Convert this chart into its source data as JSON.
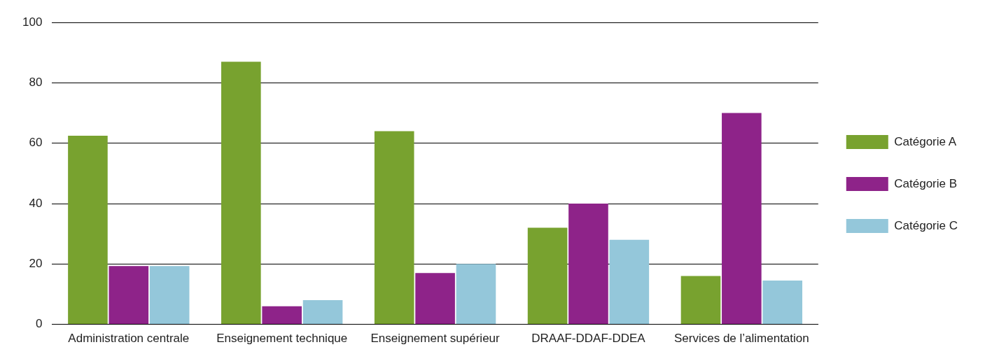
{
  "chart_data": {
    "type": "bar",
    "categories": [
      "Administration centrale",
      "Enseignement technique",
      "Enseignement supérieur",
      "DRAAF-DDAF-DDEA",
      "Services de l’alimentation"
    ],
    "series": [
      {
        "name": "Catégorie A",
        "color": "#78a22f",
        "values": [
          62.5,
          87,
          64,
          32,
          16
        ]
      },
      {
        "name": "Catégorie B",
        "color": "#8e2389",
        "values": [
          19.3,
          6,
          17,
          40,
          70
        ]
      },
      {
        "name": "Catégorie C",
        "color": "#94c7da",
        "values": [
          19.3,
          8,
          20,
          28,
          14.5
        ]
      }
    ],
    "ylim": [
      0,
      100
    ],
    "yticks": [
      0,
      20,
      40,
      60,
      80,
      100
    ],
    "grid": "y",
    "legend": "right"
  }
}
